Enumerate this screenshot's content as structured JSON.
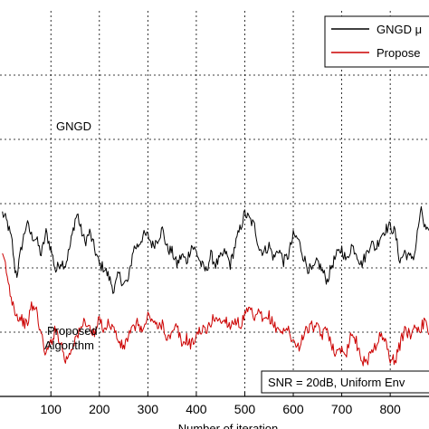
{
  "chart_data": {
    "type": "line",
    "x_ticks": [
      100,
      200,
      300,
      400,
      500,
      600,
      700,
      800
    ],
    "xlim": [
      -5,
      880
    ],
    "ylim": [
      0,
      6
    ],
    "grid": true,
    "xlabel_visible": "Number of iteration",
    "legend": {
      "placement": "top-right",
      "entries": [
        {
          "label": "GNGD μ",
          "color": "#000000"
        },
        {
          "label": "Propose",
          "color": "#cc0000"
        }
      ]
    },
    "annotations": {
      "gngd": "GNGD",
      "proposed_line1": "Proposed",
      "proposed_line2": "Algorithm",
      "info_box": "SNR = 20dB, Uniform Env"
    },
    "series": [
      {
        "name": "GNGD",
        "color": "#000000",
        "points": [
          [
            0,
            2.85
          ],
          [
            10,
            2.7
          ],
          [
            20,
            2.4
          ],
          [
            25,
            2.0
          ],
          [
            30,
            1.9
          ],
          [
            40,
            2.35
          ],
          [
            50,
            2.7
          ],
          [
            60,
            2.5
          ],
          [
            70,
            2.45
          ],
          [
            80,
            2.2
          ],
          [
            90,
            2.55
          ],
          [
            100,
            2.3
          ],
          [
            110,
            1.95
          ],
          [
            120,
            2.1
          ],
          [
            130,
            2.05
          ],
          [
            140,
            2.35
          ],
          [
            150,
            2.75
          ],
          [
            155,
            2.85
          ],
          [
            160,
            2.65
          ],
          [
            170,
            2.4
          ],
          [
            180,
            2.55
          ],
          [
            190,
            2.3
          ],
          [
            200,
            2.05
          ],
          [
            210,
            2.0
          ],
          [
            220,
            1.85
          ],
          [
            230,
            1.65
          ],
          [
            240,
            1.9
          ],
          [
            250,
            1.75
          ],
          [
            260,
            1.8
          ],
          [
            270,
            2.3
          ],
          [
            280,
            2.35
          ],
          [
            290,
            2.5
          ],
          [
            300,
            2.5
          ],
          [
            310,
            2.35
          ],
          [
            320,
            2.45
          ],
          [
            330,
            2.6
          ],
          [
            340,
            2.3
          ],
          [
            350,
            2.25
          ],
          [
            360,
            2.05
          ],
          [
            370,
            2.2
          ],
          [
            380,
            2.1
          ],
          [
            390,
            2.35
          ],
          [
            400,
            2.25
          ],
          [
            410,
            2.05
          ],
          [
            420,
            1.95
          ],
          [
            430,
            2.2
          ],
          [
            440,
            2.05
          ],
          [
            450,
            2.15
          ],
          [
            460,
            2.25
          ],
          [
            470,
            2.05
          ],
          [
            480,
            2.35
          ],
          [
            490,
            2.6
          ],
          [
            500,
            2.85
          ],
          [
            510,
            2.75
          ],
          [
            520,
            2.65
          ],
          [
            530,
            2.3
          ],
          [
            540,
            2.25
          ],
          [
            550,
            2.35
          ],
          [
            560,
            2.15
          ],
          [
            570,
            2.3
          ],
          [
            580,
            2.1
          ],
          [
            590,
            2.2
          ],
          [
            600,
            2.5
          ],
          [
            610,
            2.45
          ],
          [
            620,
            2.2
          ],
          [
            630,
            2.0
          ],
          [
            640,
            1.95
          ],
          [
            650,
            2.1
          ],
          [
            660,
            1.95
          ],
          [
            670,
            1.8
          ],
          [
            680,
            2.05
          ],
          [
            690,
            2.2
          ],
          [
            700,
            2.3
          ],
          [
            710,
            2.1
          ],
          [
            720,
            2.35
          ],
          [
            730,
            2.25
          ],
          [
            740,
            2.05
          ],
          [
            750,
            2.2
          ],
          [
            760,
            2.4
          ],
          [
            770,
            2.3
          ],
          [
            780,
            2.5
          ],
          [
            790,
            2.6
          ],
          [
            800,
            2.65
          ],
          [
            810,
            2.55
          ],
          [
            820,
            2.1
          ],
          [
            830,
            2.25
          ],
          [
            840,
            2.15
          ],
          [
            850,
            2.2
          ],
          [
            860,
            2.75
          ],
          [
            865,
            2.9
          ],
          [
            870,
            2.65
          ],
          [
            880,
            2.5
          ]
        ]
      },
      {
        "name": "Proposed Algorithm",
        "color": "#cc0000",
        "points": [
          [
            0,
            2.15
          ],
          [
            5,
            2.1
          ],
          [
            10,
            1.85
          ],
          [
            15,
            1.65
          ],
          [
            20,
            1.5
          ],
          [
            30,
            1.25
          ],
          [
            40,
            1.2
          ],
          [
            50,
            1.1
          ],
          [
            60,
            1.4
          ],
          [
            70,
            1.35
          ],
          [
            80,
            0.95
          ],
          [
            90,
            0.65
          ],
          [
            100,
            0.85
          ],
          [
            110,
            1.05
          ],
          [
            120,
            0.85
          ],
          [
            130,
            0.55
          ],
          [
            140,
            0.7
          ],
          [
            150,
            0.9
          ],
          [
            160,
            1.0
          ],
          [
            170,
            1.2
          ],
          [
            180,
            1.05
          ],
          [
            190,
            0.95
          ],
          [
            200,
            1.2
          ],
          [
            210,
            1.05
          ],
          [
            220,
            1.15
          ],
          [
            230,
            1.05
          ],
          [
            240,
            0.85
          ],
          [
            250,
            0.75
          ],
          [
            260,
            0.95
          ],
          [
            270,
            1.05
          ],
          [
            280,
            1.15
          ],
          [
            290,
            1.0
          ],
          [
            300,
            1.25
          ],
          [
            310,
            1.2
          ],
          [
            320,
            1.05
          ],
          [
            330,
            1.15
          ],
          [
            340,
            0.9
          ],
          [
            350,
            0.95
          ],
          [
            360,
            1.1
          ],
          [
            370,
            0.8
          ],
          [
            380,
            0.9
          ],
          [
            390,
            0.8
          ],
          [
            400,
            0.95
          ],
          [
            410,
            1.05
          ],
          [
            420,
            1.0
          ],
          [
            430,
            1.15
          ],
          [
            440,
            1.25
          ],
          [
            450,
            1.15
          ],
          [
            460,
            1.2
          ],
          [
            470,
            1.1
          ],
          [
            480,
            1.2
          ],
          [
            490,
            1.1
          ],
          [
            500,
            1.25
          ],
          [
            510,
            1.35
          ],
          [
            520,
            1.2
          ],
          [
            530,
            1.3
          ],
          [
            540,
            1.15
          ],
          [
            550,
            1.25
          ],
          [
            560,
            1.1
          ],
          [
            570,
            1.05
          ],
          [
            580,
            1.0
          ],
          [
            590,
            1.05
          ],
          [
            600,
            0.85
          ],
          [
            610,
            0.75
          ],
          [
            620,
            0.95
          ],
          [
            630,
            1.05
          ],
          [
            640,
            1.1
          ],
          [
            650,
            1.05
          ],
          [
            660,
            0.95
          ],
          [
            670,
            1.05
          ],
          [
            680,
            0.8
          ],
          [
            690,
            0.65
          ],
          [
            700,
            0.75
          ],
          [
            710,
            0.7
          ],
          [
            720,
            1.0
          ],
          [
            730,
            0.85
          ],
          [
            740,
            0.6
          ],
          [
            750,
            0.5
          ],
          [
            760,
            0.7
          ],
          [
            770,
            0.8
          ],
          [
            780,
            0.95
          ],
          [
            790,
            0.85
          ],
          [
            800,
            0.6
          ],
          [
            810,
            0.55
          ],
          [
            820,
            0.8
          ],
          [
            830,
            1.05
          ],
          [
            840,
            0.95
          ],
          [
            850,
            1.1
          ],
          [
            860,
            1.05
          ],
          [
            870,
            1.15
          ],
          [
            880,
            1.0
          ]
        ]
      }
    ]
  }
}
